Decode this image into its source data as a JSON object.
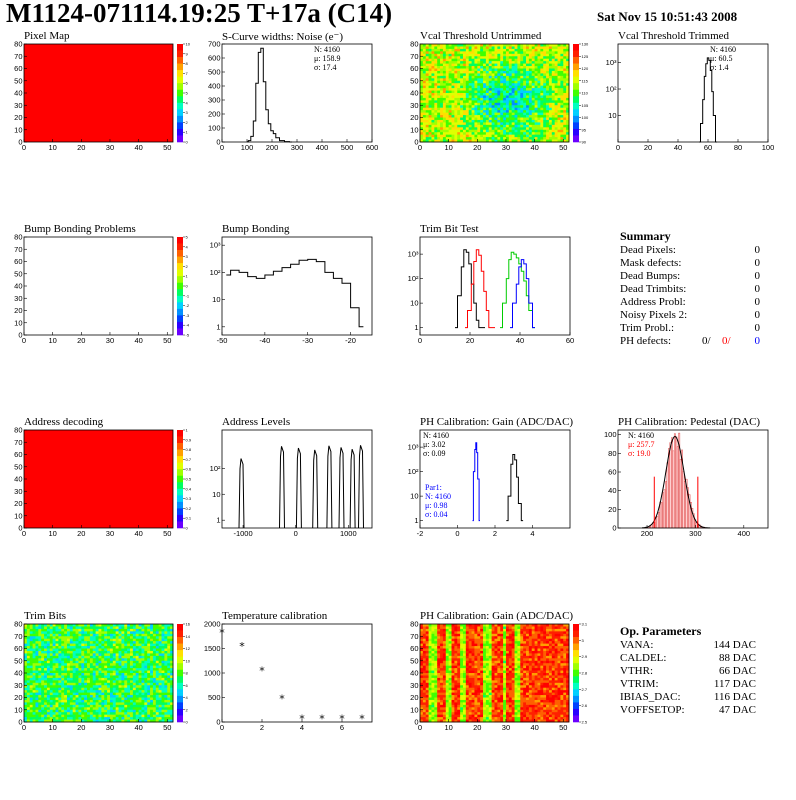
{
  "header": {
    "title": "M1124-071114.19:25 T+17a (C14)",
    "date": "Sat Nov 15 10:51:43 2008"
  },
  "colors": {
    "red": "#ff0000",
    "blue": "#0000ff",
    "green": "#00cc00",
    "black": "#000000"
  },
  "summary": {
    "title": "Summary",
    "rows": [
      {
        "label": "Dead Pixels:",
        "value": "0"
      },
      {
        "label": "Mask defects:",
        "value": "0"
      },
      {
        "label": "Dead Bumps:",
        "value": "0"
      },
      {
        "label": "Dead Trimbits:",
        "value": "0"
      },
      {
        "label": "Address Probl:",
        "value": "0"
      },
      {
        "label": "Noisy Pixels 2:",
        "value": "0"
      },
      {
        "label": "Trim Probl.:",
        "value": "0"
      }
    ],
    "ph_defects": {
      "label": "PH defects:",
      "v1": "0/",
      "v2": "0/",
      "v3": "0"
    }
  },
  "op_params": {
    "title": "Op. Parameters",
    "rows": [
      {
        "label": "VANA:",
        "value": "144 DAC"
      },
      {
        "label": "CALDEL:",
        "value": "88 DAC"
      },
      {
        "label": "VTHR:",
        "value": "66 DAC"
      },
      {
        "label": "VTRIM:",
        "value": "117 DAC"
      },
      {
        "label": "IBIAS_DAC:",
        "value": "116 DAC"
      },
      {
        "label": "VOFFSETOP:",
        "value": "47 DAC"
      }
    ]
  },
  "chart_data": [
    {
      "id": "pixel-map",
      "type": "heatmap",
      "title": "Pixel Map",
      "xlim": [
        0,
        52
      ],
      "ylim": [
        0,
        80
      ],
      "xticks": [
        "0",
        "10",
        "20",
        "30",
        "40",
        "50"
      ],
      "yticks": [
        "0",
        "10",
        "20",
        "30",
        "40",
        "50",
        "60",
        "70",
        "80"
      ],
      "fill": "uniform",
      "value": 10,
      "zticks": [
        "0",
        "1",
        "2",
        "3",
        "4",
        "5",
        "6",
        "7",
        "8",
        "9",
        "10"
      ]
    },
    {
      "id": "s-curve",
      "type": "line",
      "title": "S-Curve widths: Noise (e⁻)",
      "xlim": [
        0,
        600
      ],
      "ylim": [
        0,
        700
      ],
      "xticks": [
        "0",
        "100",
        "200",
        "300",
        "400",
        "500",
        "600"
      ],
      "yticks": [
        "0",
        "100",
        "200",
        "300",
        "400",
        "500",
        "600",
        "700"
      ],
      "stats": [
        "N: 4160",
        "μ: 158.9",
        "σ: 17.4"
      ],
      "series": [
        {
          "x": [
            100,
            110,
            120,
            130,
            140,
            150,
            160,
            170,
            180,
            190,
            200,
            210,
            220,
            240,
            260,
            280
          ],
          "values": [
            2,
            10,
            40,
            150,
            420,
            640,
            670,
            430,
            230,
            130,
            80,
            60,
            30,
            10,
            3,
            0
          ]
        }
      ]
    },
    {
      "id": "vcal-untrimmed",
      "type": "heatmap",
      "title": "Vcal Threshold Untrimmed",
      "xlim": [
        0,
        52
      ],
      "ylim": [
        0,
        80
      ],
      "xticks": [
        "0",
        "10",
        "20",
        "30",
        "40",
        "50"
      ],
      "yticks": [
        "0",
        "10",
        "20",
        "30",
        "40",
        "50",
        "60",
        "70",
        "80"
      ],
      "fill": "noise-cool-center",
      "zticks": [
        "90",
        "95",
        "100",
        "105",
        "110",
        "115",
        "120",
        "125",
        "130"
      ]
    },
    {
      "id": "vcal-trimmed",
      "type": "line",
      "title": "Vcal Threshold Trimmed",
      "xlim": [
        0,
        100
      ],
      "ylim": [
        1,
        5000
      ],
      "yscale": "log",
      "xticks": [
        "0",
        "20",
        "40",
        "60",
        "80",
        "100"
      ],
      "yticks": [
        "10",
        "10²",
        "10³"
      ],
      "stats": [
        "N: 4160",
        "μ: 60.5",
        "σ: 1.4"
      ],
      "series": [
        {
          "x": [
            54,
            56,
            57,
            58,
            59,
            60,
            61,
            62,
            63,
            64,
            66
          ],
          "values": [
            1,
            5,
            40,
            300,
            900,
            1500,
            1200,
            500,
            80,
            10,
            1
          ]
        }
      ]
    },
    {
      "id": "bump-bonding-problems",
      "type": "heatmap",
      "title": "Bump Bonding Problems",
      "xlim": [
        0,
        52
      ],
      "ylim": [
        0,
        80
      ],
      "xticks": [
        "0",
        "10",
        "20",
        "30",
        "40",
        "50"
      ],
      "yticks": [
        "0",
        "10",
        "20",
        "30",
        "40",
        "50",
        "60",
        "70",
        "80"
      ],
      "fill": "empty",
      "zticks": [
        "-5",
        "-4",
        "-3",
        "-2",
        "-1",
        "0",
        "1",
        "2",
        "3",
        "4",
        "5"
      ]
    },
    {
      "id": "bump-bonding",
      "type": "line",
      "title": "Bump Bonding",
      "xlim": [
        -50,
        -15
      ],
      "ylim": [
        0.5,
        2000
      ],
      "yscale": "log",
      "xticks": [
        "-50",
        "-40",
        "-30",
        "-20"
      ],
      "yticks": [
        "1",
        "10",
        "10²",
        "10³"
      ],
      "series": [
        {
          "x": [
            -49,
            -47,
            -45,
            -43,
            -41,
            -39,
            -37,
            -35,
            -33,
            -31,
            -29,
            -27,
            -25,
            -23,
            -21,
            -19,
            -17
          ],
          "values": [
            80,
            120,
            100,
            70,
            60,
            80,
            110,
            150,
            200,
            280,
            300,
            250,
            100,
            60,
            40,
            5,
            1
          ]
        }
      ]
    },
    {
      "id": "trim-bit-test",
      "type": "line",
      "title": "Trim Bit Test",
      "xlim": [
        0,
        60
      ],
      "ylim": [
        0.5,
        5000
      ],
      "yscale": "log",
      "xticks": [
        "0",
        "20",
        "40",
        "60"
      ],
      "yticks": [
        "1",
        "10",
        "10²",
        "10³"
      ],
      "series": [
        {
          "x": [
            14,
            16,
            17,
            18,
            19,
            20,
            21,
            22,
            23,
            24,
            26
          ],
          "values": [
            1,
            20,
            300,
            1500,
            1200,
            400,
            60,
            10,
            2,
            1,
            1
          ],
          "color": "black"
        },
        {
          "x": [
            18,
            20,
            21,
            22,
            23,
            24,
            25,
            26,
            27,
            28,
            30
          ],
          "values": [
            1,
            5,
            60,
            500,
            1500,
            900,
            200,
            30,
            5,
            1,
            1
          ],
          "color": "red"
        },
        {
          "x": [
            32,
            34,
            35,
            36,
            37,
            38,
            39,
            40,
            41,
            42,
            43,
            44,
            46
          ],
          "values": [
            1,
            10,
            100,
            600,
            1200,
            1000,
            700,
            400,
            200,
            80,
            20,
            5,
            1
          ],
          "color": "green"
        },
        {
          "x": [
            36,
            38,
            39,
            40,
            41,
            42,
            43,
            44,
            46
          ],
          "values": [
            1,
            10,
            60,
            300,
            600,
            400,
            100,
            10,
            1
          ],
          "color": "blue"
        }
      ]
    },
    {
      "id": "address-decoding",
      "type": "heatmap",
      "title": "Address decoding",
      "xlim": [
        0,
        52
      ],
      "ylim": [
        0,
        80
      ],
      "xticks": [
        "0",
        "10",
        "20",
        "30",
        "40",
        "50"
      ],
      "yticks": [
        "0",
        "10",
        "20",
        "30",
        "40",
        "50",
        "60",
        "70",
        "80"
      ],
      "fill": "uniform",
      "value": 1,
      "zticks": [
        "0",
        "0.1",
        "0.2",
        "0.3",
        "0.4",
        "0.5",
        "0.6",
        "0.7",
        "0.8",
        "0.9",
        "1"
      ]
    },
    {
      "id": "address-levels",
      "type": "line",
      "title": "Address Levels",
      "xlim": [
        -1400,
        1450
      ],
      "ylim": [
        0.5,
        3000
      ],
      "yscale": "log",
      "xticks": [
        "-1000",
        "0",
        "1000"
      ],
      "yticks": [
        "1",
        "10",
        "10²"
      ],
      "peaks": [
        -1020,
        -250,
        70,
        380,
        650,
        880,
        1090,
        1250
      ],
      "peak_height": 800
    },
    {
      "id": "ph-gain",
      "type": "line",
      "title": "PH Calibration: Gain (ADC/DAC)",
      "xlim": [
        -2,
        6
      ],
      "ylim": [
        0.5,
        5000
      ],
      "yscale": "log",
      "xticks": [
        "-2",
        "0",
        "2",
        "4"
      ],
      "yticks": [
        "1",
        "10",
        "10²",
        "10³"
      ],
      "stats": [
        "N: 4160",
        "μ: 3.02",
        "σ: 0.09"
      ],
      "stats_par1": [
        "Par1:",
        "N: 4160",
        "μ: 0.98",
        "σ: 0.04"
      ],
      "series": [
        {
          "x": [
            2.6,
            2.8,
            2.9,
            3.0,
            3.1,
            3.2,
            3.3,
            3.5
          ],
          "values": [
            1,
            10,
            200,
            500,
            300,
            60,
            5,
            1
          ],
          "color": "black"
        },
        {
          "x": [
            0.8,
            0.9,
            0.95,
            1.0,
            1.05,
            1.1,
            1.2
          ],
          "values": [
            1,
            100,
            800,
            1500,
            600,
            50,
            1
          ],
          "color": "blue"
        }
      ]
    },
    {
      "id": "ph-pedestal",
      "type": "bar",
      "title": "PH Calibration: Pedestal (DAC)",
      "xlim": [
        140,
        450
      ],
      "ylim": [
        0,
        105
      ],
      "xticks": [
        "200",
        "300",
        "400"
      ],
      "yticks": [
        "0",
        "20",
        "40",
        "60",
        "80",
        "100"
      ],
      "stats": [
        "N: 4160",
        "μ: 257.7",
        "σ: 19.0"
      ],
      "fit": {
        "mean": 257.7,
        "sigma": 19.0,
        "amplitude": 98
      },
      "cut_lines": [
        215,
        305
      ]
    },
    {
      "id": "trim-bits",
      "type": "heatmap",
      "title": "Trim Bits",
      "xlim": [
        0,
        52
      ],
      "ylim": [
        0,
        80
      ],
      "xticks": [
        "0",
        "10",
        "20",
        "30",
        "40",
        "50"
      ],
      "yticks": [
        "0",
        "10",
        "20",
        "30",
        "40",
        "50",
        "60",
        "70",
        "80"
      ],
      "fill": "noise-green",
      "zticks": [
        "0",
        "2",
        "4",
        "6",
        "8",
        "10",
        "12",
        "14",
        "16"
      ]
    },
    {
      "id": "temperature-calibration",
      "type": "scatter",
      "title": "Temperature calibration",
      "xlim": [
        0,
        7.5
      ],
      "ylim": [
        0,
        2000
      ],
      "xticks": [
        "0",
        "2",
        "4",
        "6"
      ],
      "yticks": [
        "0",
        "500",
        "1000",
        "1500",
        "2000"
      ],
      "points": [
        {
          "x": 0,
          "y": 1820
        },
        {
          "x": 1,
          "y": 1540
        },
        {
          "x": 2,
          "y": 1040
        },
        {
          "x": 3,
          "y": 470
        },
        {
          "x": 4,
          "y": 60
        },
        {
          "x": 5,
          "y": 60
        },
        {
          "x": 6,
          "y": 60
        },
        {
          "x": 7,
          "y": 60
        }
      ]
    },
    {
      "id": "ph-gain-map",
      "type": "heatmap",
      "title": "PH Calibration: Gain (ADC/DAC)",
      "xlim": [
        0,
        52
      ],
      "ylim": [
        0,
        80
      ],
      "xticks": [
        "0",
        "10",
        "20",
        "30",
        "40",
        "50"
      ],
      "yticks": [
        "0",
        "10",
        "20",
        "30",
        "40",
        "50",
        "60",
        "70",
        "80"
      ],
      "fill": "noise-warm-stripes",
      "zticks": [
        "2.5",
        "2.6",
        "2.7",
        "2.8",
        "2.9",
        "3",
        "3.1"
      ]
    }
  ]
}
